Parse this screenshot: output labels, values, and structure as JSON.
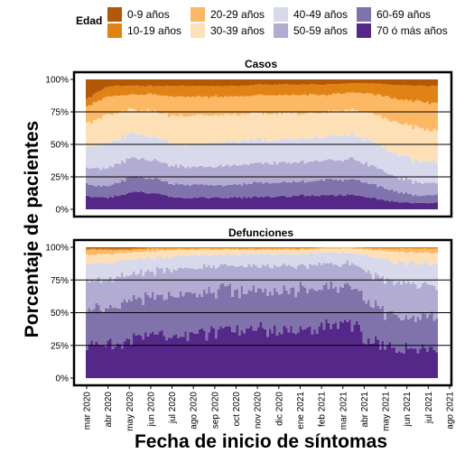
{
  "legend": {
    "title": "Edad",
    "items": [
      {
        "label": "0-9 años",
        "color": "#b35806"
      },
      {
        "label": "10-19 años",
        "color": "#e08214"
      },
      {
        "label": "20-29 años",
        "color": "#fdb863"
      },
      {
        "label": "30-39 años",
        "color": "#fee0b6"
      },
      {
        "label": "40-49 años",
        "color": "#d8daeb"
      },
      {
        "label": "50-59 años",
        "color": "#b2abd2"
      },
      {
        "label": "60-69 años",
        "color": "#8073ac"
      },
      {
        "label": "70 ó más años",
        "color": "#542788"
      }
    ]
  },
  "chart_data": [
    {
      "type": "area",
      "title": "Casos",
      "xlabel": "Fecha de inicio de síntomas",
      "ylabel": "Porcentaje de pacientes",
      "ylim": [
        0,
        100
      ],
      "y_ticks": [
        "0%",
        "25%",
        "50%",
        "75%",
        "100%"
      ],
      "x_ticks": [
        "mar 2020",
        "abr 2020",
        "may 2020",
        "jun 2020",
        "jul 2020",
        "ago 2020",
        "sep 2020",
        "oct 2020",
        "nov 2020",
        "dic 2020",
        "ene 2021",
        "feb 2021",
        "mar 2021",
        "abr 2021",
        "may 2021",
        "jun 2021",
        "jul 2021",
        "ago 2021"
      ],
      "categories": [
        "mar 2020",
        "abr 2020",
        "may 2020",
        "jun 2020",
        "jul 2020",
        "ago 2020",
        "sep 2020",
        "oct 2020",
        "nov 2020",
        "dic 2020",
        "ene 2021",
        "feb 2021",
        "mar 2021",
        "abr 2021",
        "may 2021",
        "jun 2021",
        "jul 2021"
      ],
      "stacked_percent": true,
      "series": [
        {
          "name": "70 ó más años",
          "values": [
            10,
            9,
            13,
            13,
            9,
            9,
            9,
            9,
            10,
            10,
            11,
            11,
            11,
            9,
            6,
            5,
            5
          ]
        },
        {
          "name": "60-69 años",
          "values": [
            9,
            9,
            12,
            11,
            10,
            10,
            10,
            10,
            11,
            11,
            11,
            12,
            12,
            11,
            8,
            6,
            6
          ]
        },
        {
          "name": "50-59 años",
          "values": [
            13,
            14,
            15,
            14,
            14,
            14,
            15,
            15,
            15,
            15,
            15,
            15,
            16,
            14,
            12,
            10,
            9
          ]
        },
        {
          "name": "40-49 años",
          "values": [
            16,
            19,
            19,
            18,
            17,
            17,
            18,
            18,
            18,
            18,
            18,
            18,
            19,
            19,
            18,
            17,
            16
          ]
        },
        {
          "name": "30-39 años",
          "values": [
            18,
            22,
            18,
            20,
            22,
            22,
            21,
            21,
            20,
            20,
            19,
            19,
            19,
            21,
            24,
            25,
            25
          ]
        },
        {
          "name": "20-29 años",
          "values": [
            13,
            14,
            11,
            13,
            15,
            15,
            14,
            14,
            14,
            14,
            14,
            13,
            13,
            15,
            18,
            20,
            21
          ]
        },
        {
          "name": "10-19 años",
          "values": [
            6,
            8,
            7,
            6,
            8,
            8,
            8,
            8,
            8,
            8,
            8,
            8,
            7,
            8,
            10,
            12,
            13
          ]
        },
        {
          "name": "0-9 años",
          "values": [
            15,
            5,
            5,
            5,
            5,
            5,
            5,
            5,
            4,
            4,
            4,
            4,
            3,
            3,
            4,
            5,
            5
          ]
        }
      ]
    },
    {
      "type": "area",
      "title": "Defunciones",
      "xlabel": "Fecha de inicio de síntomas",
      "ylabel": "Porcentaje de pacientes",
      "ylim": [
        0,
        100
      ],
      "y_ticks": [
        "0%",
        "25%",
        "50%",
        "75%",
        "100%"
      ],
      "x_ticks": [
        "mar 2020",
        "abr 2020",
        "may 2020",
        "jun 2020",
        "jul 2020",
        "ago 2020",
        "sep 2020",
        "oct 2020",
        "nov 2020",
        "dic 2020",
        "ene 2021",
        "feb 2021",
        "mar 2021",
        "abr 2021",
        "may 2021",
        "jun 2021",
        "jul 2021",
        "ago 2021"
      ],
      "categories": [
        "mar 2020",
        "abr 2020",
        "may 2020",
        "jun 2020",
        "jul 2020",
        "ago 2020",
        "sep 2020",
        "oct 2020",
        "nov 2020",
        "dic 2020",
        "ene 2021",
        "feb 2021",
        "mar 2021",
        "abr 2021",
        "may 2021",
        "jun 2021",
        "jul 2021"
      ],
      "stacked_percent": true,
      "series": [
        {
          "name": "70 ó más años",
          "values": [
            25,
            25,
            30,
            32,
            33,
            35,
            36,
            37,
            36,
            37,
            38,
            40,
            40,
            30,
            22,
            22,
            22
          ]
        },
        {
          "name": "60-69 años",
          "values": [
            25,
            28,
            30,
            30,
            30,
            30,
            30,
            31,
            31,
            30,
            30,
            30,
            30,
            28,
            25,
            24,
            24
          ]
        },
        {
          "name": "50-59 años",
          "values": [
            22,
            22,
            20,
            20,
            20,
            19,
            19,
            18,
            19,
            19,
            18,
            17,
            18,
            22,
            25,
            25,
            25
          ]
        },
        {
          "name": "40-49 años",
          "values": [
            14,
            13,
            11,
            10,
            10,
            10,
            9,
            9,
            9,
            9,
            9,
            9,
            8,
            13,
            17,
            17,
            17
          ]
        },
        {
          "name": "30-39 años",
          "values": [
            8,
            7,
            5,
            5,
            5,
            4,
            4,
            3,
            3,
            3,
            3,
            3,
            3,
            5,
            8,
            8,
            8
          ]
        },
        {
          "name": "20-29 años",
          "values": [
            4,
            3,
            2,
            2,
            1,
            1,
            1,
            1,
            1,
            1,
            1,
            1,
            1,
            1,
            2,
            3,
            3
          ]
        },
        {
          "name": "10-19 años",
          "values": [
            1,
            1,
            1,
            1,
            1,
            1,
            1,
            1,
            1,
            1,
            1,
            0,
            0,
            1,
            1,
            1,
            1
          ]
        },
        {
          "name": "0-9 años",
          "values": [
            1,
            1,
            1,
            0,
            0,
            0,
            0,
            0,
            0,
            0,
            0,
            0,
            0,
            0,
            0,
            0,
            0
          ]
        }
      ]
    }
  ]
}
